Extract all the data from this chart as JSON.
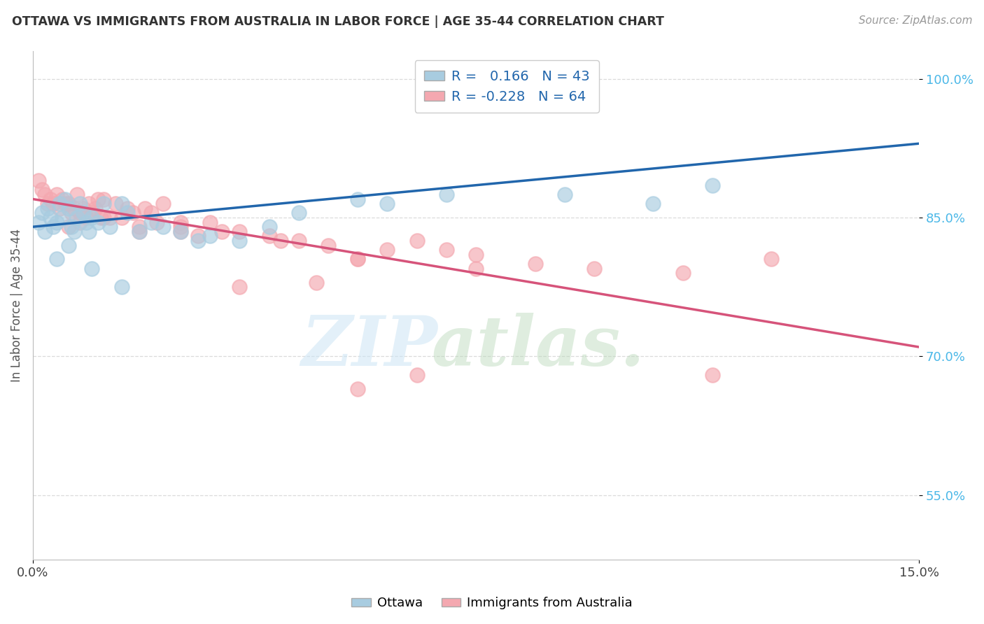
{
  "title": "OTTAWA VS IMMIGRANTS FROM AUSTRALIA IN LABOR FORCE | AGE 35-44 CORRELATION CHART",
  "source": "Source: ZipAtlas.com",
  "ylabel": "In Labor Force | Age 35-44",
  "xlim": [
    0.0,
    15.0
  ],
  "ylim": [
    48.0,
    103.0
  ],
  "yticks": [
    55.0,
    70.0,
    85.0,
    100.0
  ],
  "xticks": [
    0.0,
    15.0
  ],
  "legend_labels": [
    "Ottawa",
    "Immigrants from Australia"
  ],
  "blue_color": "#a8cce0",
  "pink_color": "#f4a8b0",
  "blue_line_color": "#2166ac",
  "pink_line_color": "#d6537a",
  "r_value_color": "#2166ac",
  "blue_r": 0.166,
  "pink_r": -0.228,
  "blue_N": 43,
  "pink_N": 64,
  "background_color": "#ffffff",
  "grid_color": "#cccccc",
  "ottawa_x": [
    0.1,
    0.15,
    0.2,
    0.25,
    0.3,
    0.35,
    0.4,
    0.45,
    0.5,
    0.55,
    0.6,
    0.65,
    0.7,
    0.75,
    0.8,
    0.85,
    0.9,
    0.95,
    1.0,
    1.1,
    1.2,
    1.3,
    1.5,
    1.6,
    1.8,
    2.0,
    2.2,
    2.5,
    2.8,
    3.0,
    3.5,
    4.0,
    4.5,
    5.5,
    6.0,
    7.0,
    9.0,
    10.5,
    11.5,
    0.4,
    0.6,
    1.0,
    1.5
  ],
  "ottawa_y": [
    84.5,
    85.5,
    83.5,
    86.0,
    85.0,
    84.0,
    84.5,
    86.5,
    85.0,
    87.0,
    86.0,
    84.0,
    83.5,
    85.0,
    86.5,
    85.5,
    84.5,
    83.5,
    85.0,
    84.5,
    86.5,
    84.0,
    86.5,
    85.5,
    83.5,
    84.5,
    84.0,
    83.5,
    82.5,
    83.0,
    82.5,
    84.0,
    85.5,
    87.0,
    86.5,
    87.5,
    87.5,
    86.5,
    88.5,
    80.5,
    82.0,
    79.5,
    77.5
  ],
  "immig_x": [
    0.1,
    0.15,
    0.2,
    0.25,
    0.3,
    0.35,
    0.4,
    0.45,
    0.5,
    0.55,
    0.6,
    0.65,
    0.7,
    0.75,
    0.8,
    0.85,
    0.9,
    0.95,
    1.0,
    1.05,
    1.1,
    1.15,
    1.2,
    1.3,
    1.4,
    1.5,
    1.6,
    1.7,
    1.8,
    1.9,
    2.0,
    2.1,
    2.2,
    2.5,
    2.8,
    3.0,
    3.5,
    4.0,
    4.5,
    5.0,
    5.5,
    6.0,
    7.0,
    7.5,
    8.5,
    9.5,
    11.0,
    12.5,
    2.5,
    3.2,
    4.2,
    5.5,
    6.5,
    7.5,
    3.5,
    4.8,
    0.6,
    0.8,
    1.2,
    1.8,
    2.5,
    5.5,
    11.5,
    6.5
  ],
  "immig_y": [
    89.0,
    88.0,
    87.5,
    86.5,
    87.0,
    86.5,
    87.5,
    86.0,
    87.0,
    86.5,
    86.5,
    85.5,
    86.0,
    87.5,
    85.5,
    86.0,
    85.0,
    86.5,
    85.5,
    86.0,
    87.0,
    85.0,
    87.0,
    85.0,
    86.5,
    85.0,
    86.0,
    85.5,
    83.5,
    86.0,
    85.5,
    84.5,
    86.5,
    84.5,
    83.0,
    84.5,
    83.5,
    83.0,
    82.5,
    82.0,
    80.5,
    81.5,
    81.5,
    81.0,
    80.0,
    79.5,
    79.0,
    80.5,
    83.5,
    83.5,
    82.5,
    80.5,
    82.5,
    79.5,
    77.5,
    78.0,
    84.0,
    84.5,
    85.0,
    84.0,
    84.0,
    66.5,
    68.0,
    68.0
  ]
}
